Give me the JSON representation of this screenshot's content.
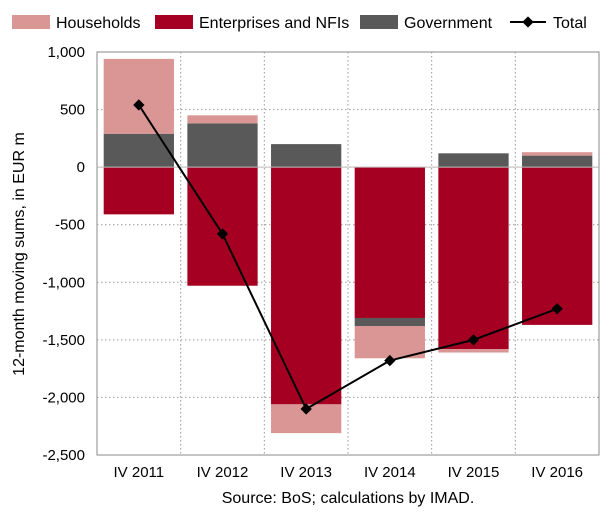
{
  "chart_data": {
    "type": "bar",
    "stacked": true,
    "categories": [
      "IV 2011",
      "IV 2012",
      "IV 2013",
      "IV 2014",
      "IV 2015",
      "IV 2016"
    ],
    "series": [
      {
        "name": "Households",
        "kind": "bar",
        "color": "#d99694",
        "values": [
          650,
          70,
          -250,
          -280,
          -30,
          30
        ]
      },
      {
        "name": "Enterprises and NFIs",
        "kind": "bar",
        "color": "#a50021",
        "values": [
          -410,
          -1030,
          -2060,
          -1310,
          -1580,
          -1370
        ]
      },
      {
        "name": "Government",
        "kind": "bar",
        "color": "#595959",
        "values": [
          290,
          380,
          200,
          -70,
          120,
          100
        ]
      },
      {
        "name": "Total",
        "kind": "line",
        "color": "#000000",
        "values": [
          540,
          -580,
          -2100,
          -1680,
          -1500,
          -1230
        ]
      }
    ],
    "ylabel": "12-month moving sums, in EUR m",
    "ylim": [
      -2500,
      1000
    ],
    "yticks": [
      1000,
      500,
      0,
      -500,
      -1000,
      -1500,
      -2000,
      -2500
    ],
    "ytick_labels": [
      "1,000",
      "500",
      "0",
      "-500",
      "-1,000",
      "-1,500",
      "-2,000",
      "-2,500"
    ],
    "grid": "dotted",
    "legend_position": "top",
    "source": "Source: BoS; calculations by IMAD."
  }
}
